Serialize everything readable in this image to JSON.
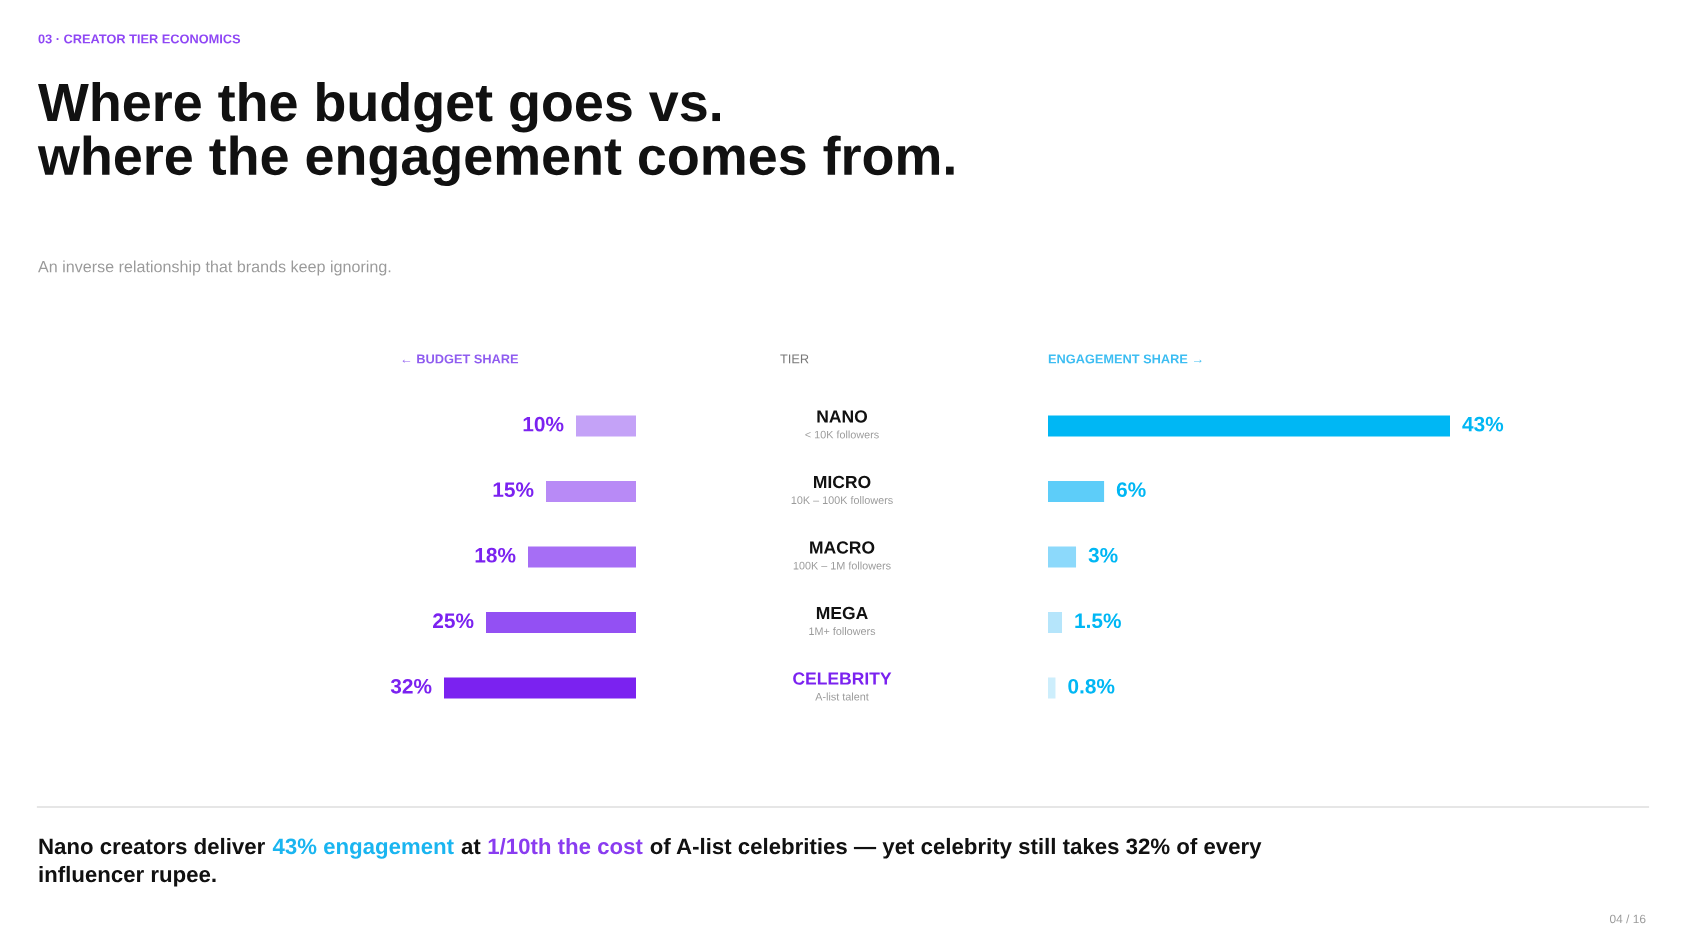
{
  "chart_data": [
    {
      "type": "bar",
      "orientation": "horizontal",
      "title": "Where the budget goes vs.\nwhere the engagement comes from.",
      "subtitle": "An inverse relationship that brands keep ignoring.",
      "xlabel": "← BUDGET SHARE",
      "ylabel": "TIER",
      "tick_labels": "y",
      "categories": [
        "NANO\n< 10K followers",
        "MICRO\n10K – 100K followers",
        "MACRO\n100K – 1M followers",
        "MEGA\n1M+ followers",
        "CELEBRITY\nA-list talent"
      ],
      "values": [
        10,
        15,
        18,
        25,
        32
      ],
      "colors": [
        "#c4a2f7",
        "#b88af6",
        "#a66ef5",
        "#9350f3",
        "#7b22f0"
      ],
      "value_labels": [
        "10%",
        "15%",
        "18%",
        "25%",
        "32%"
      ],
      "annotations": [
        "03 · CREATOR TIER ECONOMICS",
        "Nano creators deliver",
        "43% engagement",
        "at",
        "1/10th the cost",
        "of A-list celebrities — yet celebrity still takes 32% of every",
        "influencer rupee.",
        "04 / 16"
      ]
    },
    {
      "type": "bar",
      "orientation": "horizontal",
      "xlabel": "ENGAGEMENT SHARE →",
      "tick_labels": false,
      "categories": [
        null,
        null,
        null,
        null,
        null
      ],
      "values": [
        43,
        6,
        3,
        1.5,
        0.8
      ],
      "colors": [
        "#00b7f4",
        "#5dcdf9",
        "#8cd9fb",
        "#b5e5fb",
        "#cdeefc"
      ],
      "value_labels": [
        "43%",
        "6%",
        "3%",
        "1.5%",
        "0.8%"
      ]
    }
  ]
}
